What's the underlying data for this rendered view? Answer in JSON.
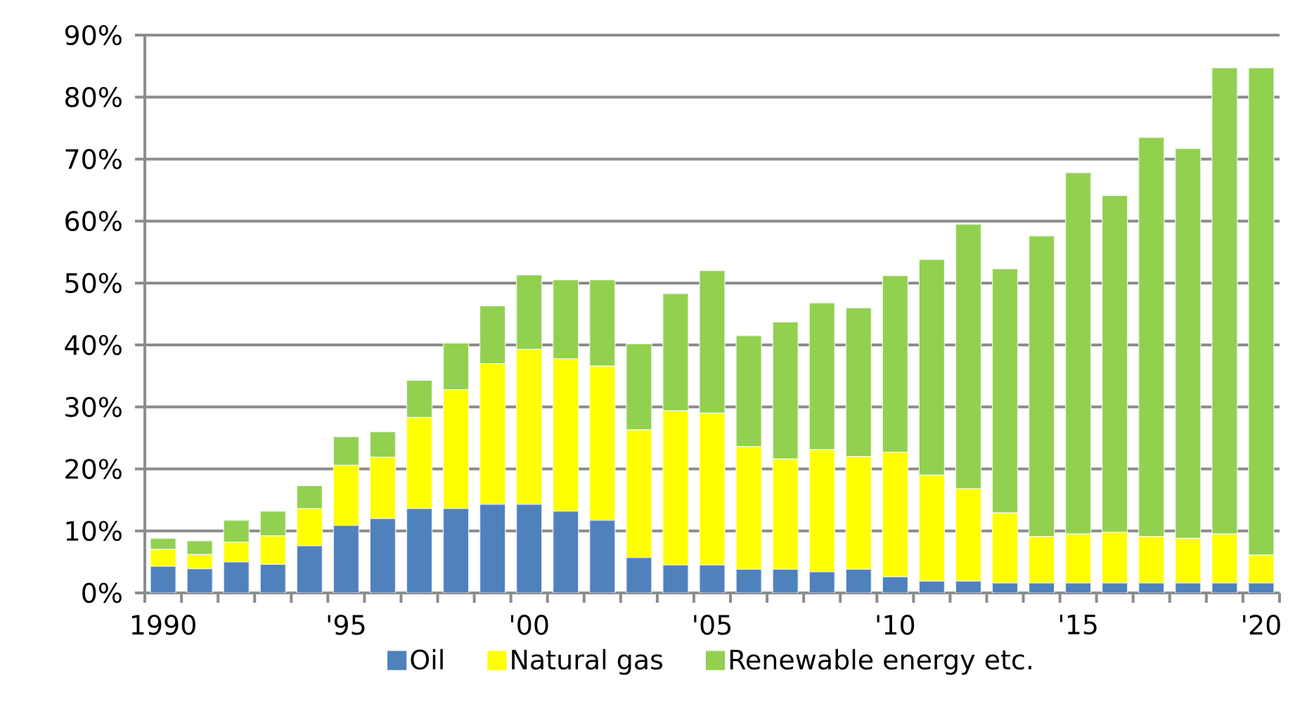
{
  "chart_data": {
    "type": "bar",
    "stacked": true,
    "categories": [
      "1990",
      null,
      null,
      null,
      null,
      "'95",
      null,
      null,
      null,
      null,
      "'00",
      null,
      null,
      null,
      null,
      "'05",
      null,
      null,
      null,
      null,
      "'10",
      null,
      null,
      null,
      null,
      "'15",
      null,
      null,
      null,
      null,
      "'20"
    ],
    "series": [
      {
        "name": "Oil",
        "color": "#4f81bd",
        "values": [
          4.3,
          3.9,
          5.0,
          4.6,
          7.6,
          10.9,
          12.0,
          13.6,
          13.6,
          14.3,
          14.3,
          13.2,
          11.7,
          5.7,
          4.5,
          4.5,
          3.8,
          3.8,
          3.4,
          3.8,
          2.6,
          1.9,
          1.9,
          1.6,
          1.6,
          1.6,
          1.6,
          1.6,
          1.6,
          1.6,
          1.6
        ]
      },
      {
        "name": "Natural gas",
        "color": "#ffff00",
        "values": [
          2.7,
          2.3,
          3.2,
          4.6,
          6.0,
          9.7,
          9.9,
          14.7,
          19.2,
          22.7,
          25.0,
          24.6,
          24.9,
          20.6,
          24.9,
          24.5,
          19.8,
          17.8,
          19.7,
          18.2,
          20.1,
          17.1,
          14.9,
          11.3,
          7.5,
          7.9,
          8.2,
          7.5,
          7.2,
          7.9,
          4.5
        ]
      },
      {
        "name": "Renewable energy etc.",
        "color": "#92d050",
        "values": [
          1.8,
          2.2,
          3.5,
          4.0,
          3.7,
          4.6,
          4.1,
          6.0,
          7.5,
          9.3,
          12.0,
          12.7,
          13.9,
          13.9,
          18.9,
          23.0,
          17.9,
          22.1,
          23.7,
          24.0,
          28.5,
          34.8,
          42.7,
          39.4,
          48.5,
          58.3,
          54.3,
          64.4,
          62.9,
          75.2,
          78.6
        ]
      }
    ],
    "ylim": [
      0,
      90
    ],
    "yticks": [
      {
        "value": 0,
        "label": "0%"
      },
      {
        "value": 10,
        "label": "10%"
      },
      {
        "value": 20,
        "label": "20%"
      },
      {
        "value": 30,
        "label": "30%"
      },
      {
        "value": 40,
        "label": "40%"
      },
      {
        "value": 50,
        "label": "50%"
      },
      {
        "value": 60,
        "label": "60%"
      },
      {
        "value": 70,
        "label": "70%"
      },
      {
        "value": 80,
        "label": "80%"
      },
      {
        "value": 90,
        "label": "90%"
      }
    ],
    "grid": "y",
    "legend": "bottom"
  }
}
